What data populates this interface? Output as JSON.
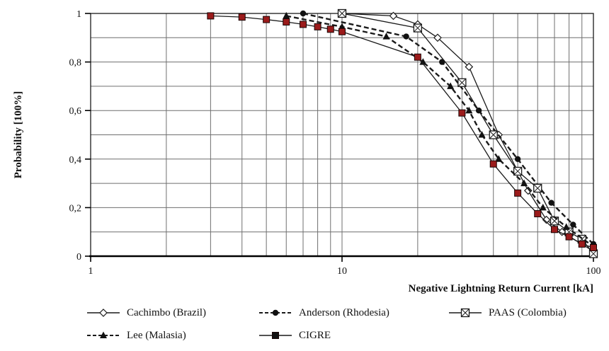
{
  "chart_data": {
    "type": "line",
    "title": "",
    "xlabel": "Negative Lightning Return Current [kA]",
    "ylabel": "Probability [100%]",
    "x_scale": "log",
    "xlim": [
      1,
      100
    ],
    "ylim": [
      0,
      1
    ],
    "grid": "on",
    "legend_position": "bottom",
    "x_ticks": [
      {
        "v": 1,
        "label": "1"
      },
      {
        "v": 10,
        "label": "10"
      },
      {
        "v": 100,
        "label": "100"
      }
    ],
    "y_ticks": [
      {
        "v": 0,
        "label": "0"
      },
      {
        "v": 0.2,
        "label": "0,2"
      },
      {
        "v": 0.4,
        "label": "0,4"
      },
      {
        "v": 0.6,
        "label": "0,6"
      },
      {
        "v": 0.8,
        "label": "0,8"
      },
      {
        "v": 1,
        "label": "1"
      }
    ],
    "minor_x_gridlines": [
      2,
      3,
      4,
      5,
      6,
      7,
      8,
      9,
      10,
      20,
      30,
      40,
      50,
      60,
      70,
      80,
      90,
      100
    ],
    "minor_y_gridline_step": 0.1,
    "colors": {
      "line": "#1a1a1a",
      "grid": "#6f6f6f",
      "cigre_marker_fill": "#9b1b1b",
      "open_marker_fill": "#ffffff"
    },
    "series": [
      {
        "key": "cachimbo",
        "name": "Cachimbo (Brazil)",
        "line": "solid",
        "marker": "diamond-open",
        "points": [
          [
            10,
            1.0
          ],
          [
            16,
            0.99
          ],
          [
            20,
            0.955
          ],
          [
            24,
            0.9
          ],
          [
            32,
            0.78
          ],
          [
            42,
            0.5
          ],
          [
            55,
            0.27
          ],
          [
            65,
            0.15
          ],
          [
            75,
            0.1
          ],
          [
            100,
            0.02
          ]
        ]
      },
      {
        "key": "anderson",
        "name": "Anderson (Rhodesia)",
        "line": "dashed",
        "marker": "circle-filled",
        "points": [
          [
            7,
            1.0
          ],
          [
            18,
            0.905
          ],
          [
            25,
            0.8
          ],
          [
            35,
            0.6
          ],
          [
            50,
            0.4
          ],
          [
            68,
            0.22
          ],
          [
            83,
            0.13
          ],
          [
            100,
            0.05
          ]
        ]
      },
      {
        "key": "paas",
        "name": "PAAS (Colombia)",
        "line": "solid",
        "marker": "square-crossed",
        "points": [
          [
            10,
            1.0
          ],
          [
            20,
            0.94
          ],
          [
            30,
            0.715
          ],
          [
            40,
            0.5
          ],
          [
            50,
            0.35
          ],
          [
            60,
            0.28
          ],
          [
            70,
            0.145
          ],
          [
            80,
            0.1
          ],
          [
            90,
            0.07
          ],
          [
            100,
            0.01
          ]
        ]
      },
      {
        "key": "lee",
        "name": "Lee (Malasia)",
        "line": "dashed",
        "marker": "triangle-filled",
        "points": [
          [
            6,
            0.99
          ],
          [
            10,
            0.945
          ],
          [
            15,
            0.905
          ],
          [
            21,
            0.8
          ],
          [
            27,
            0.7
          ],
          [
            32,
            0.6
          ],
          [
            36,
            0.5
          ],
          [
            42,
            0.4
          ],
          [
            53,
            0.3
          ],
          [
            63,
            0.2
          ],
          [
            78,
            0.12
          ],
          [
            100,
            0.04
          ]
        ]
      },
      {
        "key": "cigre",
        "name": "CIGRE",
        "line": "solid",
        "marker": "square-filled",
        "points": [
          [
            3,
            0.99
          ],
          [
            4,
            0.985
          ],
          [
            5,
            0.975
          ],
          [
            6,
            0.965
          ],
          [
            7,
            0.955
          ],
          [
            8,
            0.945
          ],
          [
            9,
            0.935
          ],
          [
            10,
            0.925
          ],
          [
            20,
            0.82
          ],
          [
            30,
            0.59
          ],
          [
            40,
            0.38
          ],
          [
            50,
            0.26
          ],
          [
            60,
            0.175
          ],
          [
            70,
            0.11
          ],
          [
            80,
            0.08
          ],
          [
            90,
            0.05
          ],
          [
            100,
            0.035
          ]
        ]
      }
    ]
  },
  "legend": {
    "rows": [
      [
        "cachimbo",
        "anderson",
        "paas"
      ],
      [
        "lee",
        "cigre"
      ]
    ]
  }
}
